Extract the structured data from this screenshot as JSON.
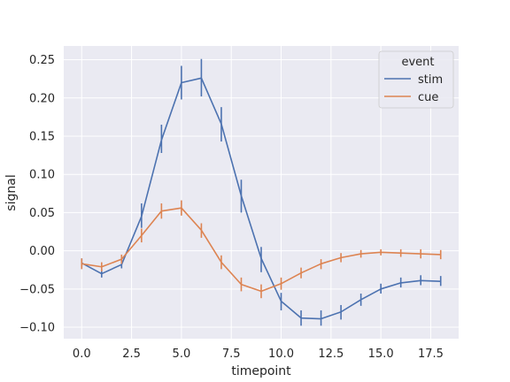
{
  "chart_data": {
    "type": "line",
    "xlabel": "timepoint",
    "ylabel": "signal",
    "xlim": [
      -0.9,
      18.9
    ],
    "ylim": [
      -0.115,
      0.268
    ],
    "xticks": [
      0.0,
      2.5,
      5.0,
      7.5,
      10.0,
      12.5,
      15.0,
      17.5
    ],
    "xtick_labels": [
      "0.0",
      "2.5",
      "5.0",
      "7.5",
      "10.0",
      "12.5",
      "15.0",
      "17.5"
    ],
    "yticks": [
      -0.1,
      -0.05,
      0.0,
      0.05,
      0.1,
      0.15,
      0.2,
      0.25
    ],
    "ytick_labels": [
      "−0.10",
      "−0.05",
      "0.00",
      "0.05",
      "0.10",
      "0.15",
      "0.20",
      "0.25"
    ],
    "grid": true,
    "legend": {
      "title": "event",
      "placement": "top-right"
    },
    "x": [
      0,
      1,
      2,
      3,
      4,
      5,
      6,
      7,
      8,
      9,
      10,
      11,
      12,
      13,
      14,
      15,
      16,
      17,
      18
    ],
    "series": [
      {
        "name": "stim",
        "color": "#4c72b0",
        "values": [
          -0.016,
          -0.03,
          -0.018,
          0.045,
          0.145,
          0.22,
          0.226,
          0.166,
          0.072,
          -0.01,
          -0.066,
          -0.088,
          -0.089,
          -0.08,
          -0.064,
          -0.05,
          -0.042,
          -0.039,
          -0.04
        ],
        "err_low": [
          -0.021,
          -0.035,
          -0.023,
          0.03,
          0.128,
          0.198,
          0.202,
          0.143,
          0.05,
          -0.028,
          -0.078,
          -0.098,
          -0.098,
          -0.09,
          -0.072,
          -0.056,
          -0.048,
          -0.045,
          -0.046
        ],
        "err_high": [
          -0.01,
          -0.024,
          -0.012,
          0.062,
          0.165,
          0.242,
          0.251,
          0.188,
          0.093,
          0.005,
          -0.055,
          -0.078,
          -0.078,
          -0.071,
          -0.056,
          -0.043,
          -0.035,
          -0.032,
          -0.033
        ]
      },
      {
        "name": "cue",
        "color": "#dd8452",
        "values": [
          -0.017,
          -0.021,
          -0.011,
          0.02,
          0.052,
          0.056,
          0.027,
          -0.015,
          -0.044,
          -0.053,
          -0.043,
          -0.029,
          -0.017,
          -0.009,
          -0.004,
          -0.002,
          -0.003,
          -0.004,
          -0.005
        ],
        "err_low": [
          -0.024,
          -0.027,
          -0.017,
          0.011,
          0.042,
          0.046,
          0.017,
          -0.024,
          -0.053,
          -0.062,
          -0.051,
          -0.036,
          -0.024,
          -0.015,
          -0.009,
          -0.006,
          -0.008,
          -0.01,
          -0.011
        ],
        "err_high": [
          -0.01,
          -0.015,
          -0.005,
          0.029,
          0.062,
          0.066,
          0.036,
          -0.006,
          -0.035,
          -0.044,
          -0.035,
          -0.022,
          -0.011,
          -0.003,
          0.001,
          0.002,
          0.002,
          0.002,
          0.001
        ]
      }
    ]
  }
}
